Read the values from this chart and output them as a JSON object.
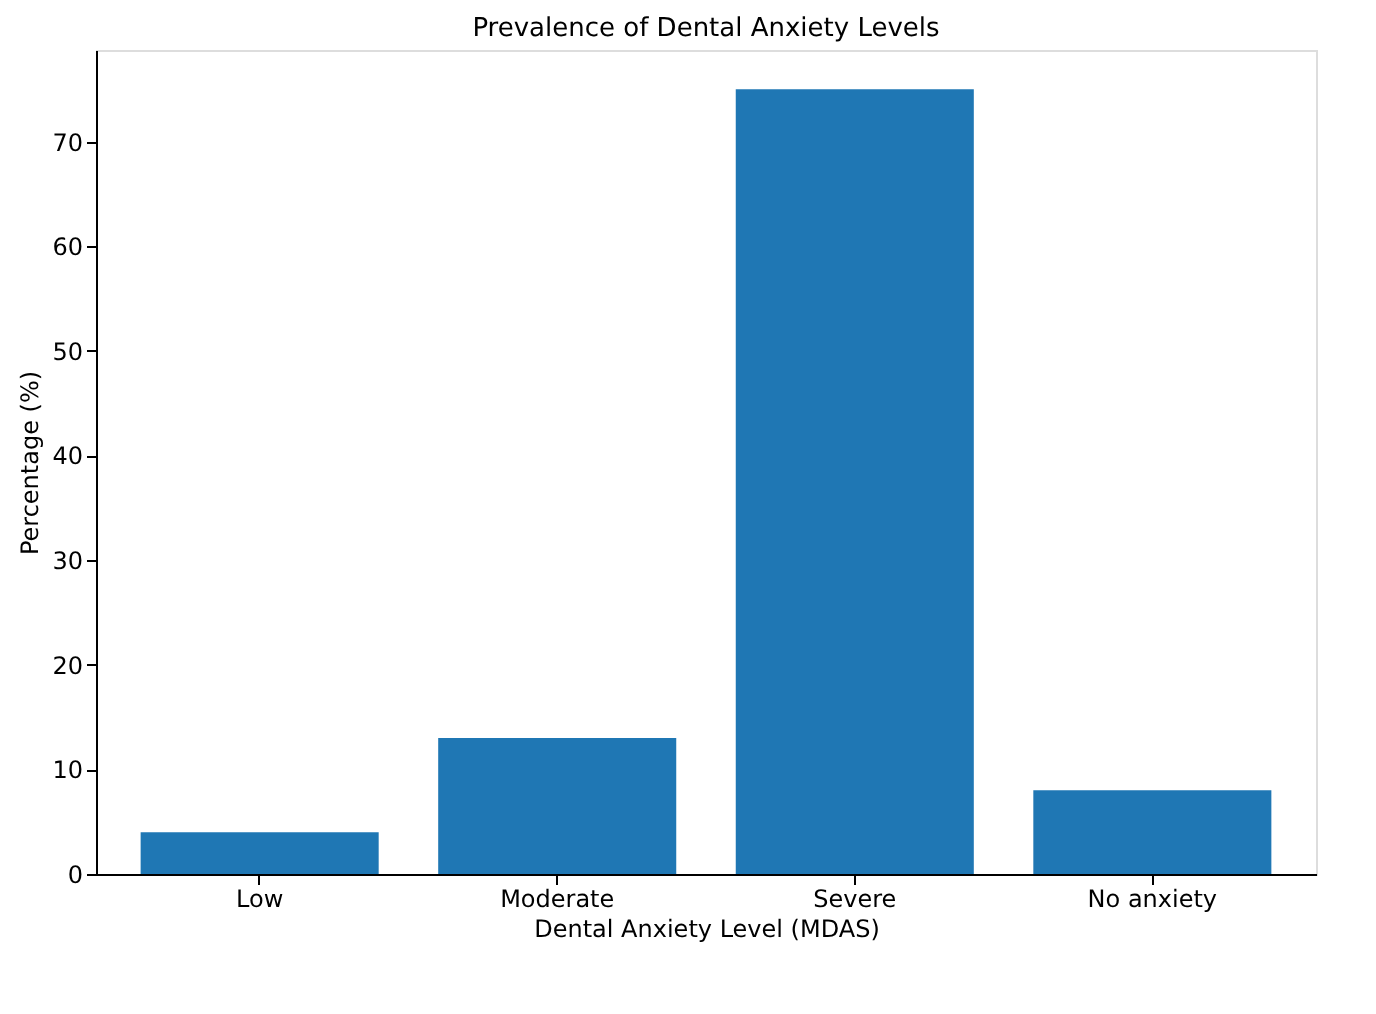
{
  "chart_data": {
    "type": "bar",
    "title": "Prevalence of Dental Anxiety Levels",
    "xlabel": "Dental Anxiety Level (MDAS)",
    "ylabel": "Percentage (%)",
    "categories": [
      "Low",
      "Moderate",
      "Severe",
      "No anxiety"
    ],
    "series": [
      {
        "color": "#1f77b4",
        "values": [
          4,
          13,
          75,
          8
        ]
      }
    ],
    "ylim": [
      0,
      78.75
    ],
    "yticks": [
      0,
      10,
      20,
      30,
      40,
      50,
      60,
      70
    ],
    "grid": false,
    "legend": false
  }
}
